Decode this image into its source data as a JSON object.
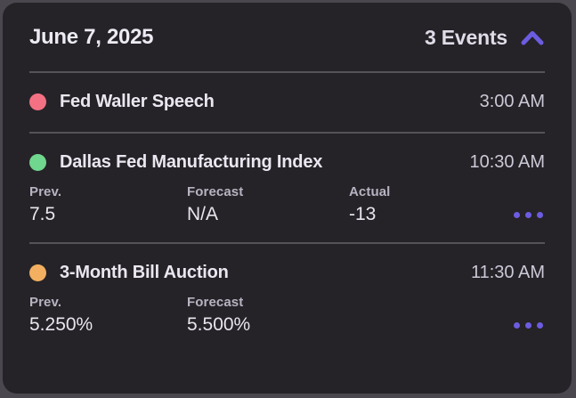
{
  "header": {
    "date": "June 7, 2025",
    "events_count_label": "3 Events",
    "collapse_icon": "chevron-up-icon"
  },
  "colors": {
    "accent_purple": "#6C5CE0",
    "dot_pink": "#F47183",
    "dot_green": "#70D78E",
    "dot_orange": "#F3B061",
    "card_background": "#252327",
    "outer_background": "#4A484E",
    "divider": "#55525A"
  },
  "events": [
    {
      "title": "Fed Waller Speech",
      "time": "3:00 AM",
      "dot_color": "#F47183",
      "stats": [],
      "has_menu": false
    },
    {
      "title": "Dallas Fed Manufacturing Index",
      "time": "10:30 AM",
      "dot_color": "#70D78E",
      "stats": [
        {
          "label": "Prev.",
          "value": "7.5"
        },
        {
          "label": "Forecast",
          "value": "N/A"
        },
        {
          "label": "Actual",
          "value": "-13"
        }
      ],
      "has_menu": true
    },
    {
      "title": "3-Month Bill Auction",
      "time": "11:30 AM",
      "dot_color": "#F3B061",
      "stats": [
        {
          "label": "Prev.",
          "value": "5.250%"
        },
        {
          "label": "Forecast",
          "value": "5.500%"
        }
      ],
      "has_menu": true
    }
  ]
}
